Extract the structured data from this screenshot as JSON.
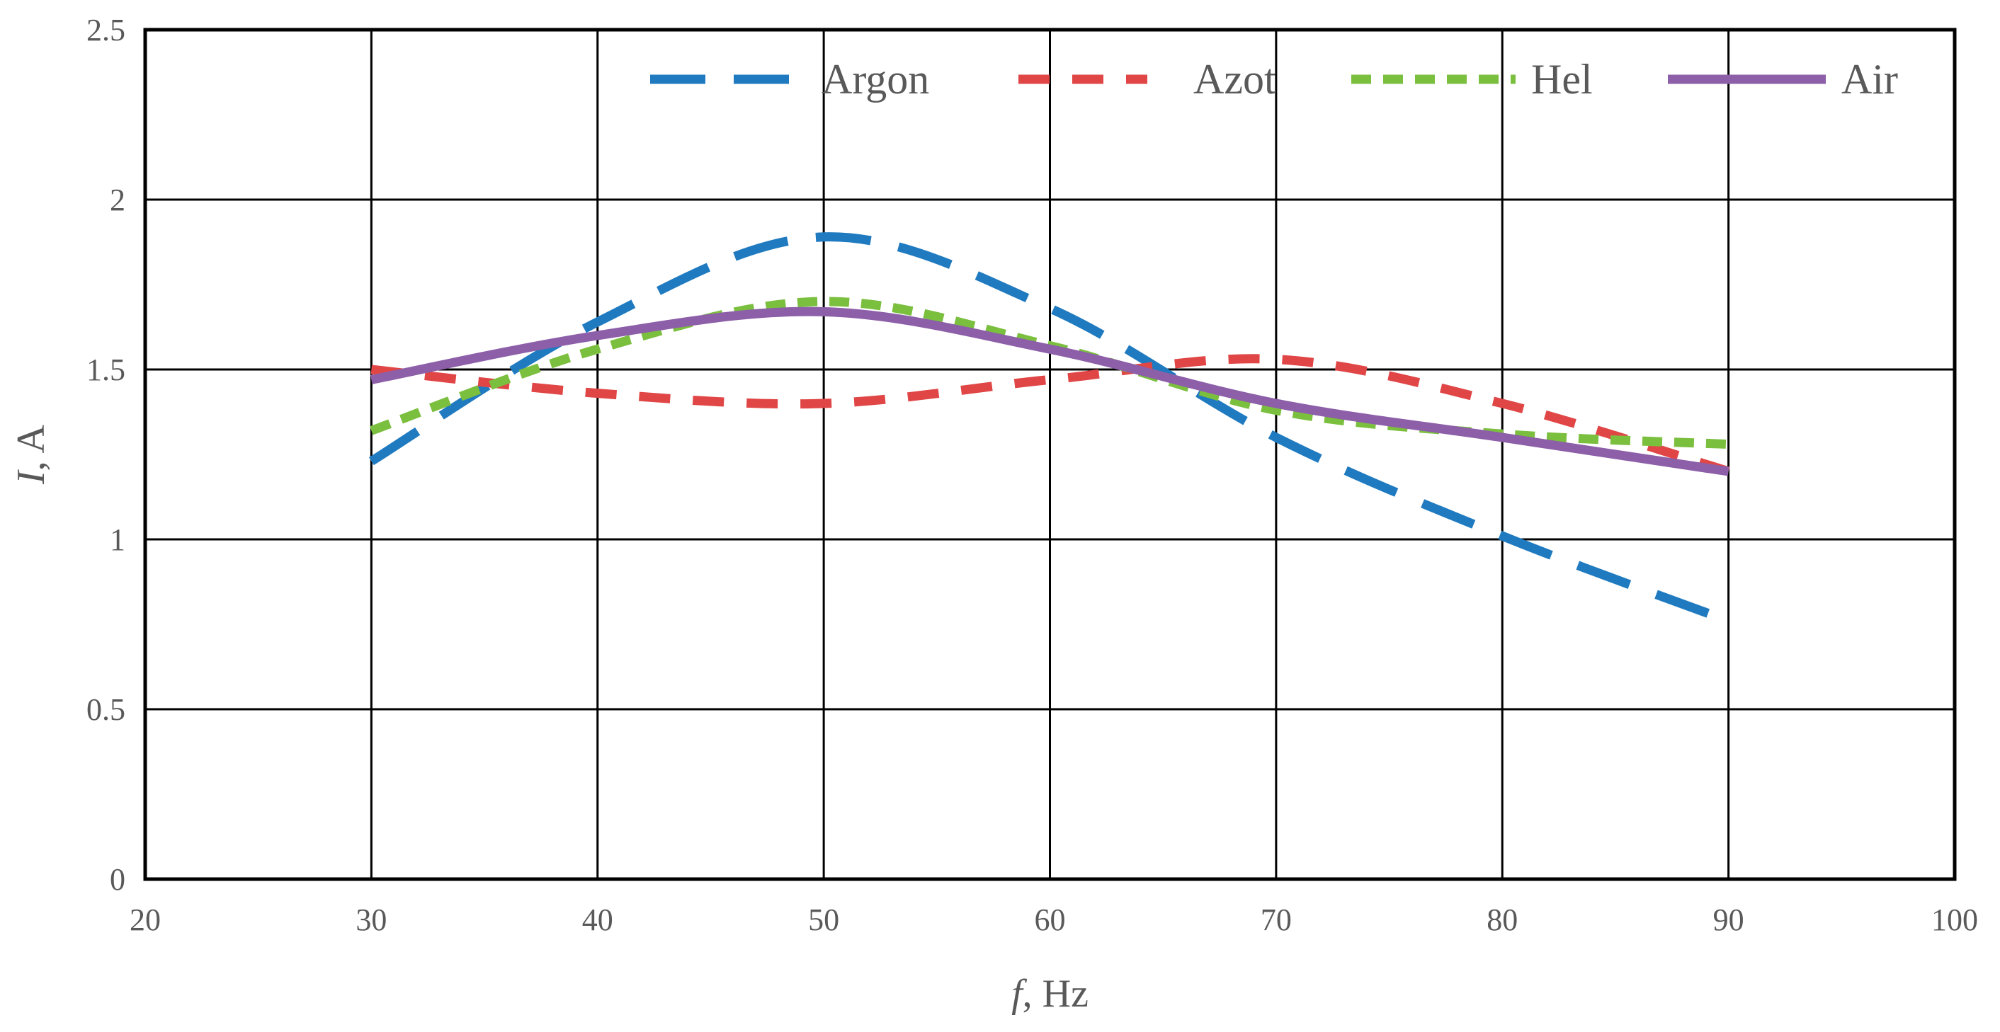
{
  "chart_data": {
    "type": "line",
    "title": "",
    "xlabel_var": "f",
    "xlabel_unit": ", Hz",
    "ylabel_var": "I",
    "ylabel_unit": ", A",
    "xlim": [
      20,
      100
    ],
    "ylim": [
      0,
      2.5
    ],
    "xticks": [
      "20",
      "30",
      "40",
      "50",
      "60",
      "70",
      "80",
      "90",
      "100"
    ],
    "yticks": [
      "0",
      "0.5",
      "1",
      "1.5",
      "2",
      "2.5"
    ],
    "grid": true,
    "legend_position": "top-right",
    "x": [
      30,
      40,
      50,
      60,
      70,
      80,
      90
    ],
    "series": [
      {
        "name": "Argon",
        "color": "#1f7ac0",
        "dash": "long-dash",
        "values": [
          1.23,
          1.64,
          1.89,
          1.68,
          1.3,
          1.01,
          0.76
        ]
      },
      {
        "name": "Azot",
        "color": "#e04646",
        "dash": "dash",
        "values": [
          1.5,
          1.43,
          1.4,
          1.47,
          1.53,
          1.4,
          1.2
        ]
      },
      {
        "name": "Hel",
        "color": "#7bbf3f",
        "dash": "short-dash",
        "values": [
          1.32,
          1.56,
          1.7,
          1.57,
          1.38,
          1.31,
          1.28
        ]
      },
      {
        "name": "Air",
        "color": "#8c5fa8",
        "dash": "solid",
        "values": [
          1.47,
          1.6,
          1.67,
          1.56,
          1.4,
          1.3,
          1.2
        ]
      }
    ]
  }
}
